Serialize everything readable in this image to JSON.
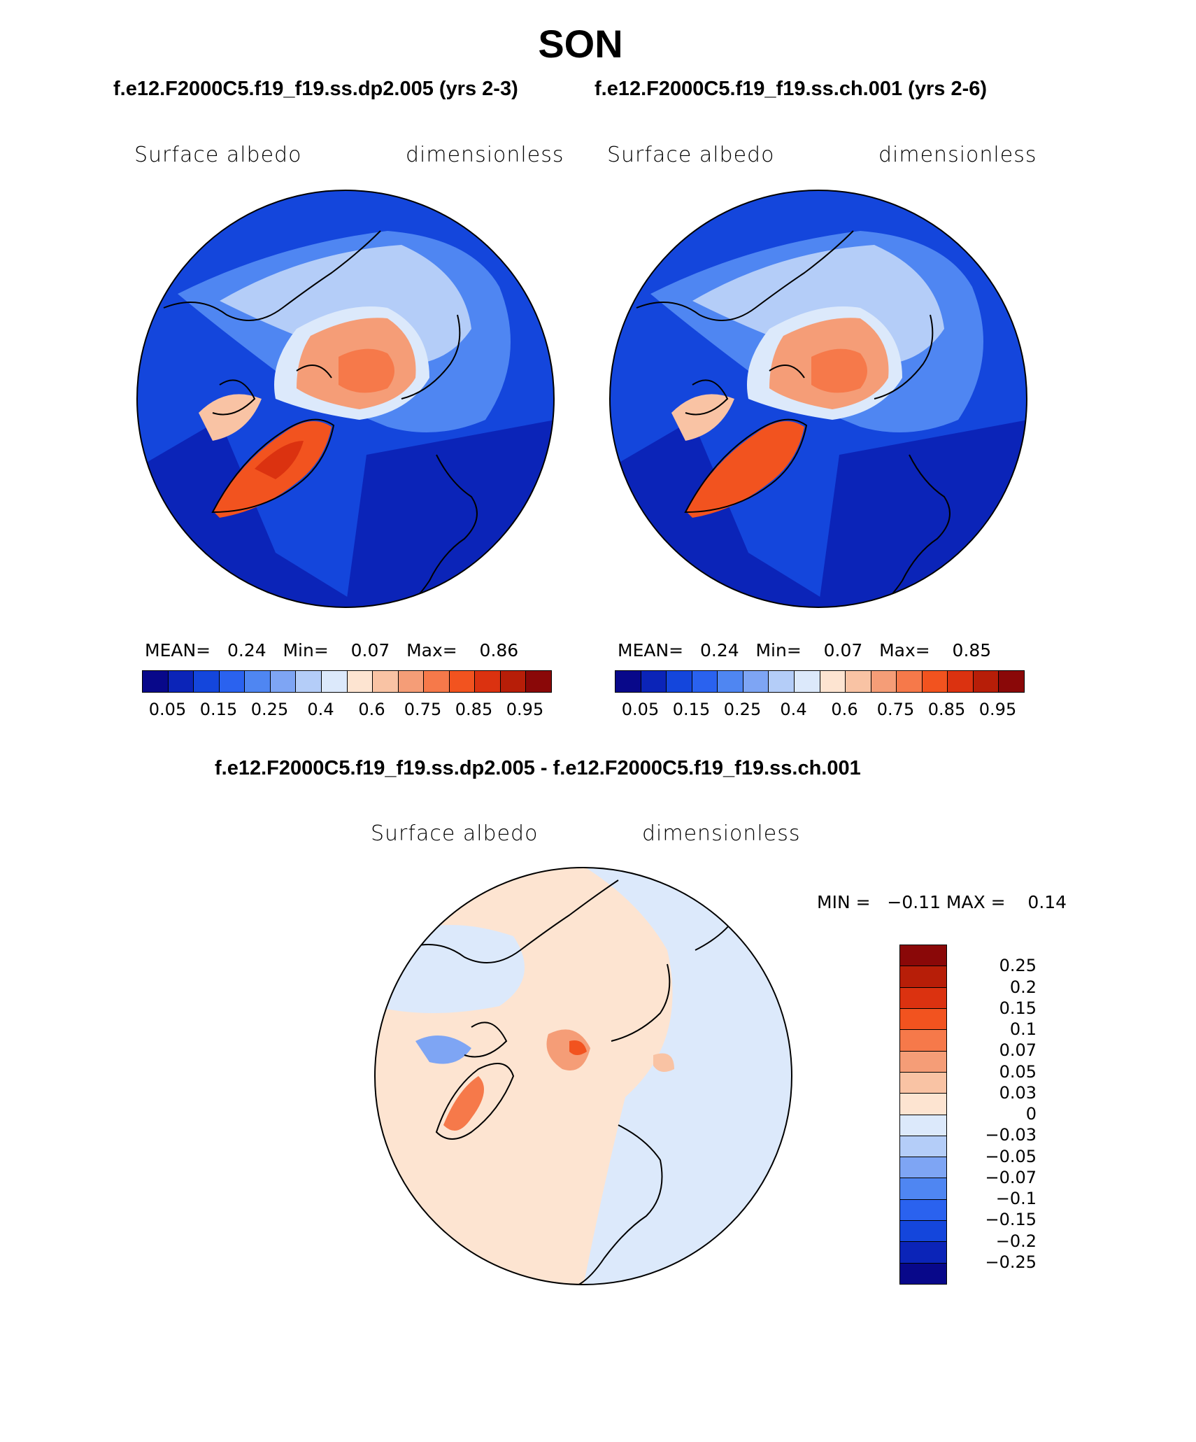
{
  "title": "SON",
  "panels_top": [
    {
      "subtitle": "f.e12.F2000C5.f19_f19.ss.dp2.005 (yrs 2-3)",
      "left_label": "Surface albedo",
      "right_label": "dimensionless",
      "mean_label": "MEAN=",
      "mean": "0.24",
      "min_label": "Min=",
      "min": "0.07",
      "max_label": "Max=",
      "max": "0.86"
    },
    {
      "subtitle": "f.e12.F2000C5.f19_f19.ss.ch.001 (yrs 2-6)",
      "left_label": "Surface albedo",
      "right_label": "dimensionless",
      "mean_label": "MEAN=",
      "mean": "0.24",
      "min_label": "Min=",
      "min": "0.07",
      "max_label": "Max=",
      "max": "0.85"
    }
  ],
  "colorbar_top": {
    "colors": [
      "#08088a",
      "#0b24b8",
      "#1446dc",
      "#2a62ef",
      "#4f86f2",
      "#7ea5f4",
      "#b4cdf8",
      "#dce9fb",
      "#fde4d1",
      "#f9c3a4",
      "#f59d77",
      "#f6794a",
      "#f2531f",
      "#db3210",
      "#b71e08",
      "#8a0808"
    ],
    "tick_labels": [
      "0.05",
      "0.15",
      "0.25",
      "0.4",
      "0.6",
      "0.75",
      "0.85",
      "0.95"
    ]
  },
  "diff_panel": {
    "subtitle": "f.e12.F2000C5.f19_f19.ss.dp2.005 - f.e12.F2000C5.f19_f19.ss.ch.001",
    "left_label": "Surface albedo",
    "right_label": "dimensionless",
    "minmax_text": "MIN =   −0.11 MAX =    0.14"
  },
  "colorbar_diff": {
    "colors_top_to_bottom": [
      "#8a0808",
      "#b71e08",
      "#db3210",
      "#f2531f",
      "#f6794a",
      "#f59d77",
      "#f9c3a4",
      "#fde4d1",
      "#dce9fb",
      "#b4cdf8",
      "#7ea5f4",
      "#4f86f2",
      "#2a62ef",
      "#1446dc",
      "#0b24b8",
      "#08088a"
    ],
    "tick_labels": [
      "0.25",
      "0.2",
      "0.15",
      "0.1",
      "0.07",
      "0.05",
      "0.03",
      "0",
      "−0.03",
      "−0.05",
      "−0.07",
      "−0.1",
      "−0.15",
      "−0.2",
      "−0.25"
    ]
  },
  "chart_data": {
    "type": "map",
    "projection": "north-polar stereographic",
    "variable": "Surface albedo",
    "units": "dimensionless",
    "season": "SON",
    "panels": [
      {
        "case": "f.e12.F2000C5.f19_f19.ss.dp2.005",
        "years": "yrs 2-3",
        "mean": 0.24,
        "min": 0.07,
        "max": 0.86
      },
      {
        "case": "f.e12.F2000C5.f19_f19.ss.ch.001",
        "years": "yrs 2-6",
        "mean": 0.24,
        "min": 0.07,
        "max": 0.85
      },
      {
        "case": "difference",
        "min": -0.11,
        "max": 0.14
      }
    ],
    "contour_levels": [
      0.05,
      0.1,
      0.15,
      0.2,
      0.25,
      0.3,
      0.4,
      0.5,
      0.6,
      0.7,
      0.75,
      0.8,
      0.85,
      0.9,
      0.95
    ],
    "diff_contour_levels": [
      -0.25,
      -0.2,
      -0.15,
      -0.1,
      -0.07,
      -0.05,
      -0.03,
      0,
      0.03,
      0.05,
      0.07,
      0.1,
      0.15,
      0.2,
      0.25
    ]
  },
  "colors": {
    "ocean_low": "#1446dc",
    "ocean_deep": "#0b24b8",
    "ice_light": "#b4cdf8",
    "seaice_high": "#f6794a",
    "greenland": "#f2531f",
    "diff_neg": "#dce9fb",
    "diff_pos": "#fde4d1"
  }
}
